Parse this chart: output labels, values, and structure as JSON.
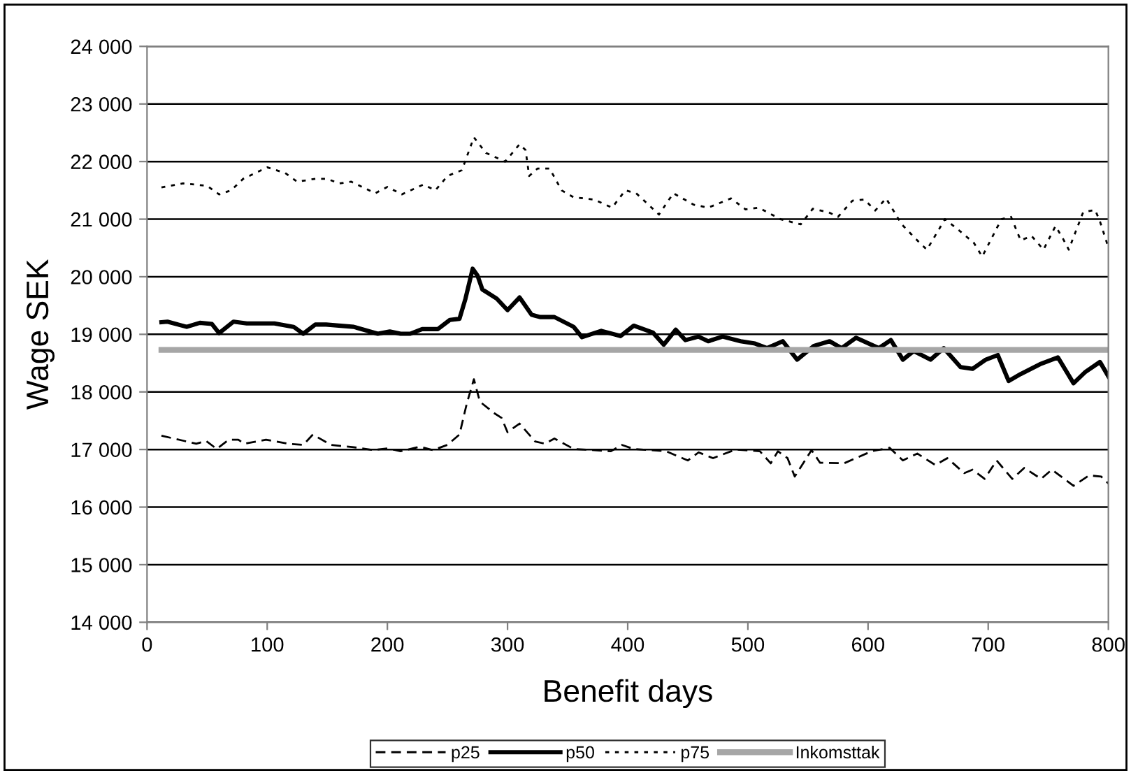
{
  "chart_data": {
    "type": "line",
    "xlabel": "Benefit days",
    "ylabel": "Wage SEK",
    "xlim": [
      0,
      800
    ],
    "xticks": [
      0,
      100,
      200,
      300,
      400,
      500,
      600,
      700,
      800
    ],
    "ylim": [
      14000,
      24000
    ],
    "yticks": [
      {
        "value": 14000,
        "label": "14 000"
      },
      {
        "value": 15000,
        "label": "15 000"
      },
      {
        "value": 16000,
        "label": "16 000"
      },
      {
        "value": 17000,
        "label": "17 000"
      },
      {
        "value": 18000,
        "label": "18 000"
      },
      {
        "value": 19000,
        "label": "19 000"
      },
      {
        "value": 20000,
        "label": "20 000"
      },
      {
        "value": 21000,
        "label": "21 000"
      },
      {
        "value": 22000,
        "label": "22 000"
      },
      {
        "value": 23000,
        "label": "23 000"
      },
      {
        "value": 24000,
        "label": "24 000"
      }
    ],
    "grid": "y",
    "legend": "bottom",
    "marker": "none",
    "series": [
      {
        "name": "p25",
        "color": "#000000",
        "line_style": "dashed",
        "x": [
          12,
          41,
          49,
          58,
          68,
          76,
          81,
          99,
          118,
          130,
          138,
          153,
          172,
          188,
          200,
          211,
          227,
          238,
          250,
          260,
          266,
          272,
          277,
          289,
          295,
          300,
          310,
          323,
          331,
          339,
          355,
          386,
          395,
          405,
          432,
          450,
          459,
          471,
          490,
          510,
          519,
          525,
          533,
          539,
          553,
          560,
          580,
          603,
          618,
          629,
          641,
          656,
          666,
          680,
          687,
          697,
          707,
          720,
          730,
          744,
          753,
          771,
          784,
          794,
          800
        ],
        "values": [
          17240,
          17100,
          17150,
          17010,
          17170,
          17170,
          17100,
          17170,
          17100,
          17080,
          17260,
          17080,
          17040,
          16990,
          17020,
          16970,
          17050,
          16990,
          17080,
          17260,
          17790,
          18220,
          17830,
          17630,
          17550,
          17300,
          17450,
          17140,
          17100,
          17190,
          17010,
          16970,
          17080,
          17010,
          16970,
          16810,
          16950,
          16850,
          17000,
          16970,
          16760,
          16970,
          16850,
          16530,
          16990,
          16770,
          16760,
          16970,
          17030,
          16810,
          16930,
          16730,
          16850,
          16590,
          16650,
          16490,
          16810,
          16490,
          16680,
          16490,
          16650,
          16370,
          16550,
          16530,
          16410
        ]
      },
      {
        "name": "p50",
        "color": "#000000",
        "line_style": "solid",
        "x": [
          12,
          17,
          33,
          44,
          54,
          60,
          72,
          83,
          106,
          122,
          130,
          140,
          149,
          172,
          192,
          202,
          211,
          219,
          229,
          242,
          252,
          260,
          265,
          271,
          275,
          279,
          291,
          300,
          310,
          320,
          327,
          339,
          355,
          362,
          378,
          394,
          405,
          421,
          430,
          440,
          448,
          459,
          467,
          479,
          494,
          506,
          516,
          529,
          541,
          555,
          568,
          578,
          590,
          609,
          619,
          629,
          638,
          652,
          663,
          677,
          687,
          698,
          708,
          717,
          727,
          743,
          758,
          771,
          781,
          793,
          800
        ],
        "values": [
          19210,
          19220,
          19130,
          19200,
          19180,
          19020,
          19220,
          19190,
          19190,
          19130,
          19010,
          19170,
          19170,
          19130,
          19010,
          19050,
          19010,
          19010,
          19090,
          19090,
          19250,
          19270,
          19620,
          20140,
          20020,
          19780,
          19620,
          19420,
          19640,
          19340,
          19300,
          19300,
          19130,
          18950,
          19060,
          18970,
          19150,
          19030,
          18820,
          19080,
          18900,
          18960,
          18880,
          18960,
          18880,
          18840,
          18760,
          18880,
          18560,
          18800,
          18880,
          18760,
          18940,
          18760,
          18900,
          18560,
          18710,
          18560,
          18760,
          18430,
          18400,
          18560,
          18640,
          18190,
          18310,
          18480,
          18600,
          18150,
          18350,
          18520,
          18270
        ]
      },
      {
        "name": "p75",
        "color": "#000000",
        "line_style": "dotted",
        "x": [
          12,
          30,
          50,
          60,
          70,
          80,
          100,
          115,
          125,
          140,
          150,
          160,
          170,
          190,
          200,
          212,
          230,
          240,
          250,
          262,
          272,
          282,
          298,
          310,
          315,
          318,
          325,
          335,
          345,
          355,
          372,
          387,
          398,
          407,
          426,
          438,
          455,
          467,
          486,
          498,
          509,
          527,
          544,
          554,
          567,
          575,
          587,
          597,
          606,
          615,
          628,
          641,
          649,
          664,
          676,
          688,
          695,
          711,
          719,
          727,
          736,
          746,
          756,
          762,
          767,
          779,
          789,
          793,
          800
        ],
        "values": [
          21550,
          21620,
          21580,
          21430,
          21500,
          21700,
          21900,
          21800,
          21650,
          21700,
          21700,
          21620,
          21650,
          21450,
          21560,
          21430,
          21600,
          21500,
          21750,
          21850,
          22420,
          22150,
          22000,
          22300,
          22200,
          21750,
          21880,
          21880,
          21500,
          21380,
          21340,
          21200,
          21500,
          21450,
          21080,
          21450,
          21250,
          21200,
          21360,
          21170,
          21200,
          21000,
          20910,
          21180,
          21120,
          21040,
          21320,
          21340,
          21150,
          21360,
          20910,
          20630,
          20470,
          21000,
          20800,
          20590,
          20350,
          21000,
          21040,
          20630,
          20710,
          20470,
          20880,
          20670,
          20470,
          21120,
          21160,
          20960,
          20510
        ]
      },
      {
        "name": "Inkomsttak",
        "color": "#a6a6a6",
        "line_style": "solid",
        "x": [
          12,
          800
        ],
        "values": [
          18730,
          18730
        ]
      }
    ]
  }
}
